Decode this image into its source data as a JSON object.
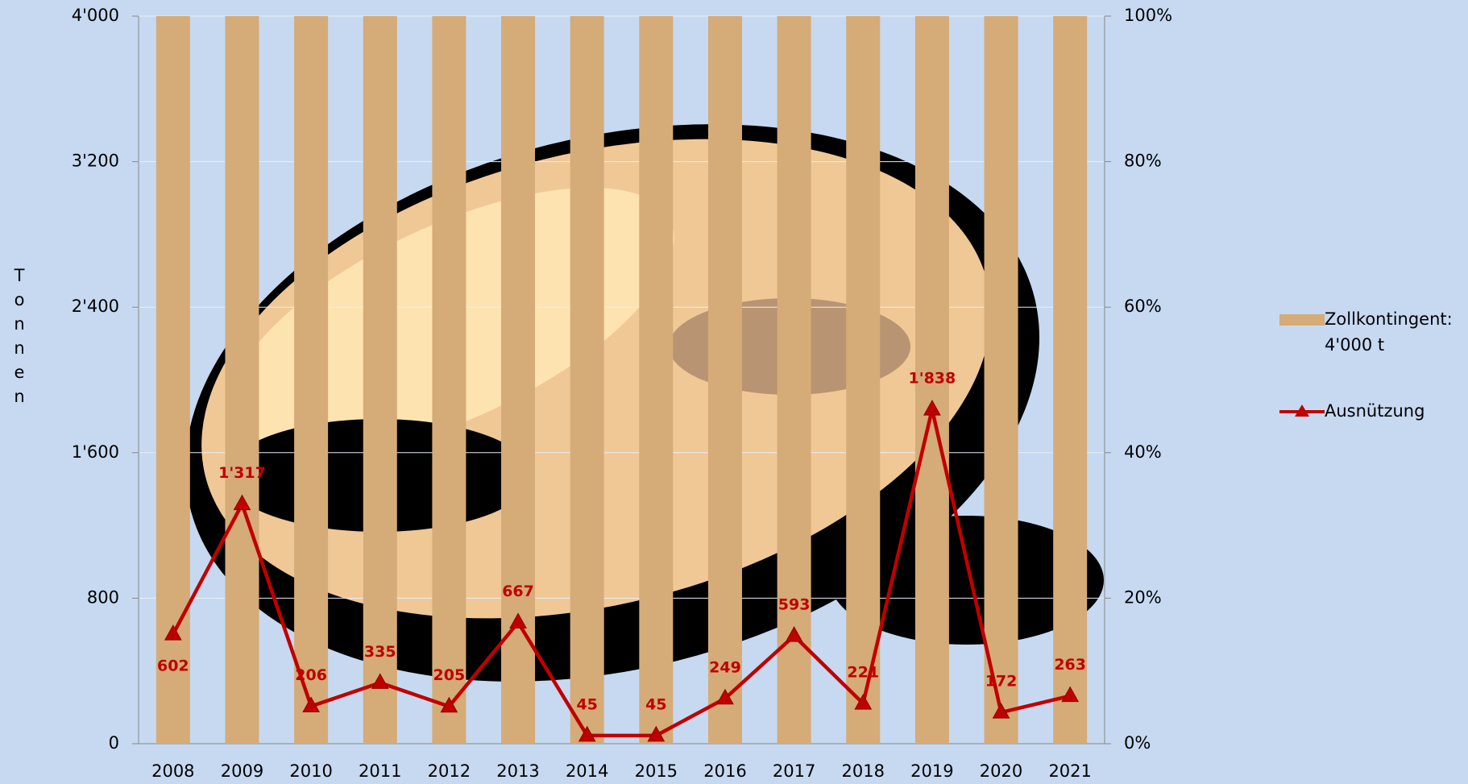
{
  "chart_data": {
    "type": "bar-line",
    "y_label": "Tonnen",
    "categories": [
      "2008",
      "2009",
      "2010",
      "2011",
      "2012",
      "2013",
      "2014",
      "2015",
      "2016",
      "2017",
      "2018",
      "2019",
      "2020",
      "2021"
    ],
    "series": [
      {
        "name": "Zollkontingent: 4'000 t",
        "type": "bar",
        "color": "#d5ab78",
        "values": [
          4000,
          4000,
          4000,
          4000,
          4000,
          4000,
          4000,
          4000,
          4000,
          4000,
          4000,
          4000,
          4000,
          4000
        ]
      },
      {
        "name": "Ausnützung",
        "type": "line",
        "color": "#c00000",
        "values": [
          602,
          1317,
          206,
          335,
          205,
          667,
          45,
          45,
          249,
          593,
          221,
          1838,
          172,
          263
        ],
        "value_labels": [
          "602",
          "1'317",
          "206",
          "335",
          "205",
          "667",
          "45",
          "45",
          "249",
          "593",
          "221",
          "1'838",
          "172",
          "263"
        ]
      }
    ],
    "ylim": [
      0,
      4000
    ],
    "yticks": [
      {
        "value": 0,
        "label": "0"
      },
      {
        "value": 800,
        "label": "800"
      },
      {
        "value": 1600,
        "label": "1'600"
      },
      {
        "value": 2400,
        "label": "2'400"
      },
      {
        "value": 3200,
        "label": "3'200"
      },
      {
        "value": 4000,
        "label": "4'000"
      }
    ],
    "y2lim": [
      0,
      100
    ],
    "y2ticks": [
      {
        "value": 0,
        "label": "0%"
      },
      {
        "value": 20,
        "label": "20%"
      },
      {
        "value": 40,
        "label": "40%"
      },
      {
        "value": 60,
        "label": "60%"
      },
      {
        "value": 80,
        "label": "80%"
      },
      {
        "value": 100,
        "label": "100%"
      }
    ],
    "grid": true
  }
}
